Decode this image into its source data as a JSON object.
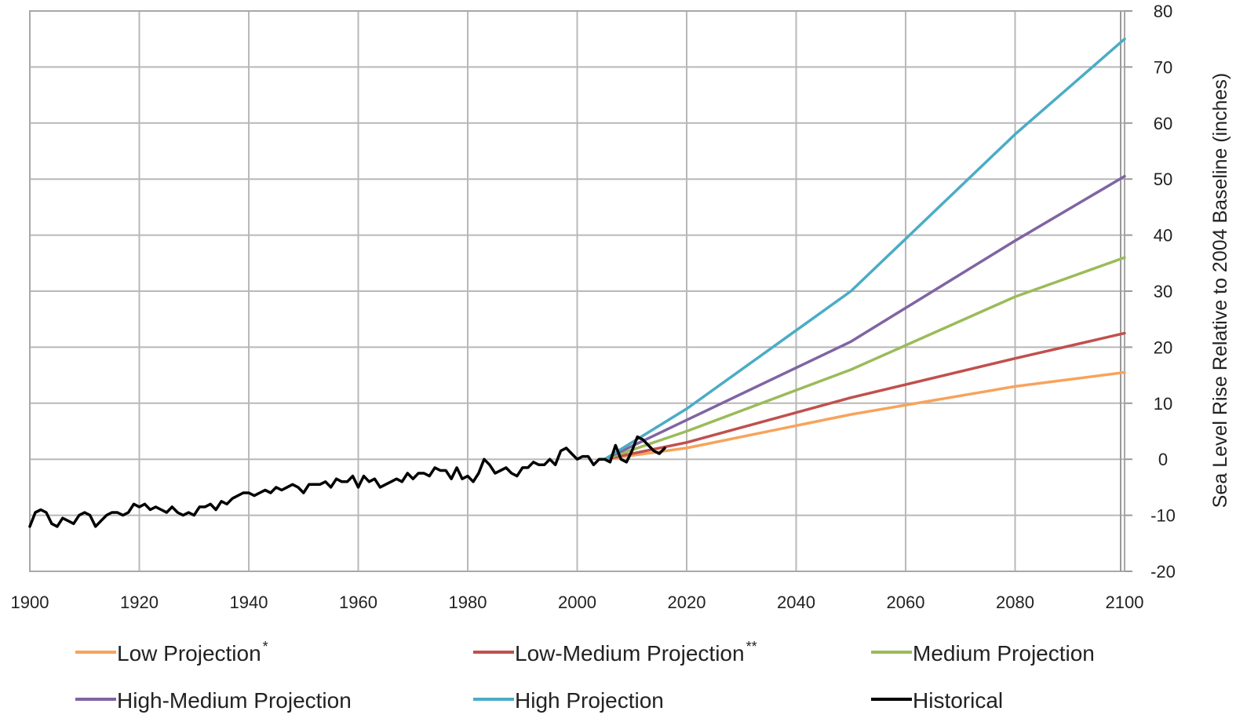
{
  "chart_data": {
    "type": "line",
    "title": "",
    "xlabel": "",
    "ylabel": "Sea Level Rise Relative to 2004 Baseline (inches)",
    "xlim": [
      1900,
      2100
    ],
    "ylim": [
      -20,
      80
    ],
    "x_ticks": [
      1900,
      1920,
      1940,
      1960,
      1980,
      2000,
      2020,
      2040,
      2060,
      2080,
      2100
    ],
    "y_ticks": [
      -20,
      -10,
      0,
      10,
      20,
      30,
      40,
      50,
      60,
      70,
      80
    ],
    "grid": true,
    "y_axis_side": "right",
    "legend_position": "bottom",
    "series": [
      {
        "name": "Low Projection",
        "marker": "*",
        "color": "#f7a35c",
        "x": [
          2005,
          2020,
          2050,
          2080,
          2100
        ],
        "y": [
          0,
          2,
          8,
          13,
          15.5
        ]
      },
      {
        "name": "Low-Medium Projection",
        "marker": "**",
        "color": "#c0504d",
        "x": [
          2005,
          2020,
          2050,
          2080,
          2100
        ],
        "y": [
          0,
          3,
          11,
          18,
          22.5
        ]
      },
      {
        "name": "Medium Projection",
        "marker": "",
        "color": "#9bbb59",
        "x": [
          2005,
          2020,
          2050,
          2080,
          2100
        ],
        "y": [
          0,
          5,
          16,
          29,
          36
        ]
      },
      {
        "name": "High-Medium Projection",
        "marker": "",
        "color": "#8064a2",
        "x": [
          2005,
          2020,
          2050,
          2080,
          2100
        ],
        "y": [
          0,
          7,
          21,
          39,
          50.5
        ]
      },
      {
        "name": "High Projection",
        "marker": "",
        "color": "#4bacc6",
        "x": [
          2005,
          2020,
          2050,
          2080,
          2100
        ],
        "y": [
          0,
          9,
          30,
          58,
          75
        ]
      },
      {
        "name": "Historical",
        "marker": "",
        "color": "#000000",
        "x": [
          1900,
          1901,
          1902,
          1903,
          1904,
          1905,
          1906,
          1907,
          1908,
          1909,
          1910,
          1911,
          1912,
          1913,
          1914,
          1915,
          1916,
          1917,
          1918,
          1919,
          1920,
          1921,
          1922,
          1923,
          1924,
          1925,
          1926,
          1927,
          1928,
          1929,
          1930,
          1931,
          1932,
          1933,
          1934,
          1935,
          1936,
          1937,
          1938,
          1939,
          1940,
          1941,
          1942,
          1943,
          1944,
          1945,
          1946,
          1947,
          1948,
          1949,
          1950,
          1951,
          1952,
          1953,
          1954,
          1955,
          1956,
          1957,
          1958,
          1959,
          1960,
          1961,
          1962,
          1963,
          1964,
          1965,
          1966,
          1967,
          1968,
          1969,
          1970,
          1971,
          1972,
          1973,
          1974,
          1975,
          1976,
          1977,
          1978,
          1979,
          1980,
          1981,
          1982,
          1983,
          1984,
          1985,
          1986,
          1987,
          1988,
          1989,
          1990,
          1991,
          1992,
          1993,
          1994,
          1995,
          1996,
          1997,
          1998,
          1999,
          2000,
          2001,
          2002,
          2003,
          2004,
          2005,
          2006,
          2007,
          2008,
          2009,
          2010,
          2011,
          2012,
          2013,
          2014,
          2015,
          2016
        ],
        "y": [
          -12,
          -9.5,
          -9,
          -9.5,
          -11.5,
          -12,
          -10.5,
          -11,
          -11.5,
          -10,
          -9.5,
          -10,
          -12,
          -11,
          -10,
          -9.5,
          -9.5,
          -10,
          -9.5,
          -8,
          -8.5,
          -8,
          -9,
          -8.5,
          -9,
          -9.5,
          -8.5,
          -9.5,
          -10,
          -9.5,
          -10,
          -8.5,
          -8.5,
          -8,
          -9,
          -7.5,
          -8,
          -7,
          -6.5,
          -6,
          -6,
          -6.5,
          -6,
          -5.5,
          -6,
          -5,
          -5.5,
          -5,
          -4.5,
          -5,
          -6,
          -4.5,
          -4.5,
          -4.5,
          -4,
          -5,
          -3.5,
          -4,
          -4,
          -3,
          -5,
          -3,
          -4,
          -3.5,
          -5,
          -4.5,
          -4,
          -3.5,
          -4,
          -2.5,
          -3.5,
          -2.5,
          -2.5,
          -3,
          -1.5,
          -2,
          -2,
          -3.5,
          -1.5,
          -3.5,
          -3,
          -4,
          -2.5,
          0,
          -1,
          -2.5,
          -2,
          -1.5,
          -2.5,
          -3,
          -1.5,
          -1.5,
          -0.5,
          -1,
          -1,
          0,
          -1,
          1.5,
          2,
          1,
          0,
          0.5,
          0.5,
          -1,
          0,
          0,
          -0.5,
          2.5,
          0,
          -0.5,
          1.5,
          4,
          3.5,
          2.5,
          1.5,
          1,
          2
        ]
      }
    ]
  }
}
